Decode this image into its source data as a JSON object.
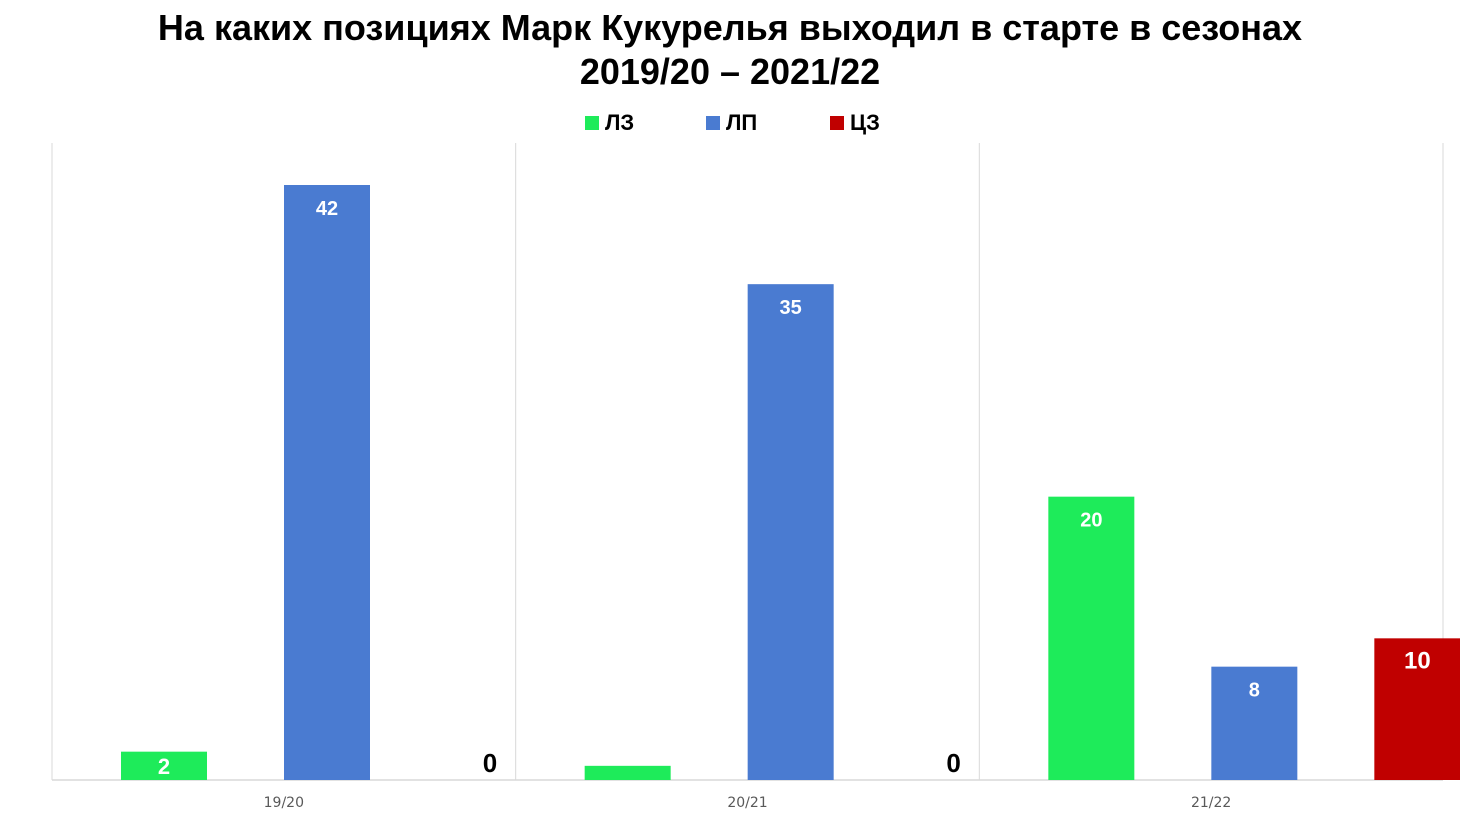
{
  "chart_data": {
    "type": "bar",
    "title_line1": "На каких позициях Марк Кукурелья выходил в старте в сезонах",
    "title_line2": "2019/20 – 2021/22",
    "categories": [
      "19/20",
      "20/21",
      "21/22"
    ],
    "series": [
      {
        "name": "ЛЗ",
        "color": "#1EEB5A",
        "values": [
          2,
          1,
          20
        ],
        "labels": [
          "2",
          "",
          "20"
        ]
      },
      {
        "name": "ЛП",
        "color": "#4A7BD1",
        "values": [
          42,
          35,
          8
        ],
        "labels": [
          "42",
          "35",
          "8"
        ]
      },
      {
        "name": "ЦЗ",
        "color": "#C00000",
        "values": [
          0,
          0,
          10
        ],
        "labels": [
          "0",
          "0",
          "10"
        ]
      }
    ],
    "ylim": [
      0,
      45
    ],
    "grid": false,
    "legend_position": "top"
  }
}
